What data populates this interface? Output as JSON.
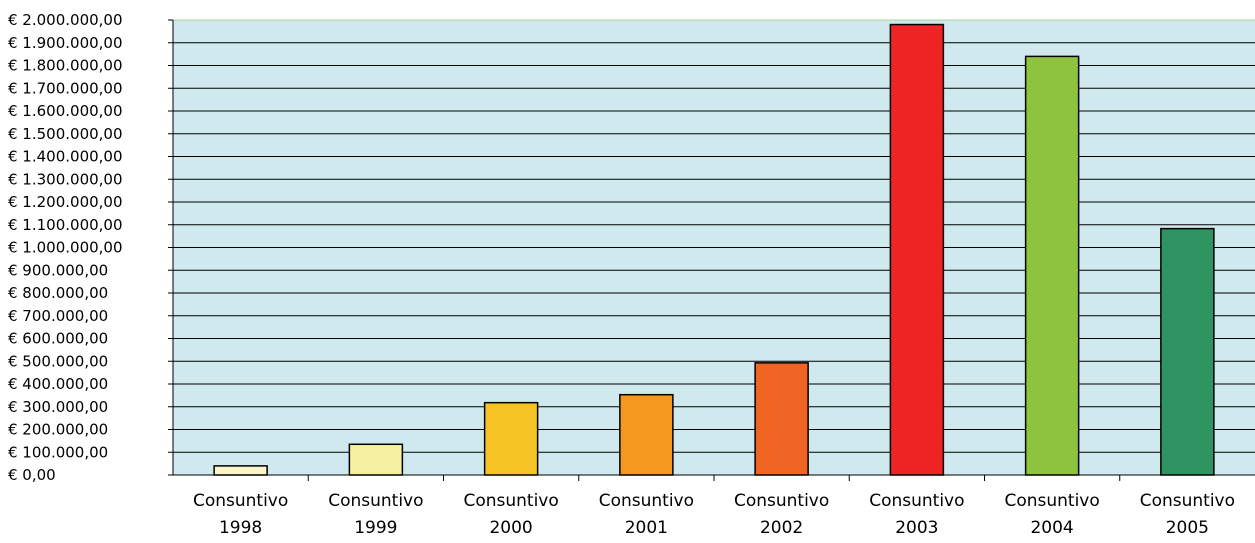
{
  "chart_data": {
    "type": "bar",
    "title": "",
    "xlabel": "",
    "ylabel": "",
    "categories": [
      [
        "Consuntivo",
        "1998"
      ],
      [
        "Consuntivo",
        "1999"
      ],
      [
        "Consuntivo",
        "2000"
      ],
      [
        "Consuntivo",
        "2001"
      ],
      [
        "Consuntivo",
        "2002"
      ],
      [
        "Consuntivo",
        "2003"
      ],
      [
        "Consuntivo",
        "2004"
      ],
      [
        "Consuntivo",
        "2005"
      ]
    ],
    "values": [
      40000,
      135000,
      318000,
      353000,
      493000,
      1980000,
      1840000,
      1083000
    ],
    "ylim": [
      0,
      2000000
    ],
    "yticks": [
      0,
      100000,
      200000,
      300000,
      400000,
      500000,
      600000,
      700000,
      800000,
      900000,
      1000000,
      1100000,
      1200000,
      1300000,
      1400000,
      1500000,
      1600000,
      1700000,
      1800000,
      1900000,
      2000000
    ],
    "ytick_labels": [
      "€ 0,00",
      "€ 100.000,00",
      "€ 200.000,00",
      "€ 300.000,00",
      "€ 400.000,00",
      "€ 500.000,00",
      "€ 600.000,00",
      "€ 700.000,00",
      "€ 800.000,00",
      "€ 900.000,00",
      "€ 1.000.000,00",
      "€ 1.100.000,00",
      "€ 1.200.000,00",
      "€ 1.300.000,00",
      "€ 1.400.000,00",
      "€ 1.500.000,00",
      "€ 1.600.000,00",
      "€ 1.700.000,00",
      "€ 1.800.000,00",
      "€ 1.900.000,00",
      "€ 2.000.000,00"
    ],
    "colors": [
      "#fbf5c8",
      "#f5f0a0",
      "#f5c424",
      "#f4981f",
      "#f06523",
      "#ee2524",
      "#8dc33f",
      "#2f9461"
    ],
    "plot_background": "#cfe9ee",
    "grid": true,
    "legend": "none"
  }
}
